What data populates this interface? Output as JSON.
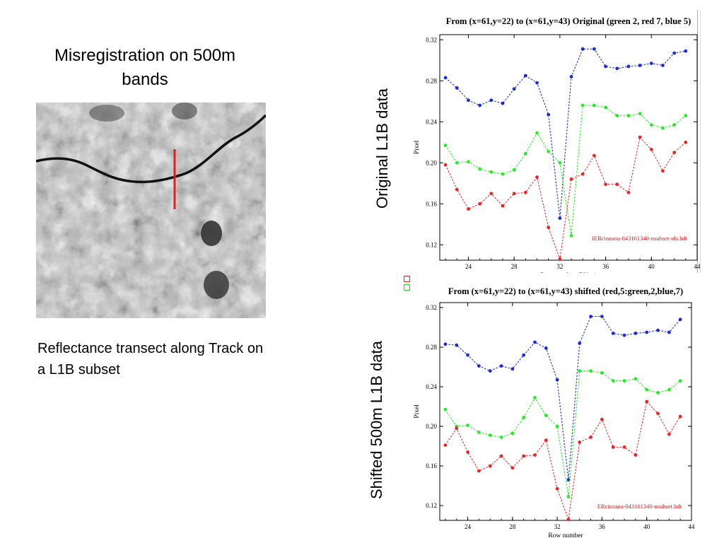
{
  "slide": {
    "title": "Misregistration on 500m bands",
    "caption": "Reflectance transect along Track on a L1B subset",
    "side_label_top": "Original L1B data",
    "side_label_bottom": "Shifted 500m L1B data"
  },
  "colors": {
    "red": "#e8262a",
    "green": "#22ee22",
    "blue": "#1a2ad8",
    "dark_red": "#d11a1a",
    "transect": "#e0201e"
  },
  "icons": [
    "legend-red-square",
    "legend-green-square"
  ],
  "chart_data": [
    {
      "type": "line",
      "title": "From (x=61,y=22) to (x=61,y=43) Original (green 2, red 7, blue 5)",
      "xlabel": "Row number (500m)",
      "ylabel": "Pixel",
      "annotation": "IERcinzana-043161340-nsubset-nls.hdt",
      "xlim": [
        21.5,
        44
      ],
      "ylim": [
        0.105,
        0.325
      ],
      "xticks": [
        24,
        28,
        32,
        36,
        40,
        44
      ],
      "yticks": [
        0.12,
        0.16,
        0.2,
        0.24,
        0.28,
        0.32
      ],
      "ytick_labels": [
        "0.12",
        "0.16",
        "0.20",
        "0.24",
        "0.28",
        "0.32"
      ],
      "x": [
        22,
        23,
        24,
        25,
        26,
        27,
        28,
        29,
        30,
        31,
        32,
        33,
        34,
        35,
        36,
        37,
        38,
        39,
        40,
        41,
        42,
        43
      ],
      "series": [
        {
          "color": "blue",
          "values": [
            0.283,
            0.273,
            0.261,
            0.256,
            0.261,
            0.258,
            0.272,
            0.285,
            0.278,
            0.247,
            0.146,
            0.284,
            0.311,
            0.311,
            0.294,
            0.292,
            0.294,
            0.295,
            0.297,
            0.295,
            0.307,
            0.309
          ]
        },
        {
          "color": "green",
          "values": [
            0.217,
            0.2,
            0.201,
            0.194,
            0.191,
            0.189,
            0.193,
            0.209,
            0.229,
            0.211,
            0.2,
            0.129,
            0.256,
            0.256,
            0.254,
            0.246,
            0.246,
            0.248,
            0.237,
            0.234,
            0.237,
            0.246
          ]
        },
        {
          "color": "red",
          "values": [
            0.198,
            0.174,
            0.155,
            0.16,
            0.17,
            0.158,
            0.17,
            0.171,
            0.186,
            0.137,
            0.106,
            0.184,
            0.189,
            0.207,
            0.179,
            0.179,
            0.171,
            0.225,
            0.213,
            0.192,
            0.21,
            0.22
          ]
        }
      ]
    },
    {
      "type": "line",
      "title": "From (x=61,y=22) to (x=61,y=43) shifted (red,5:green,2,blue,7)",
      "xlabel": "Row number",
      "ylabel": "Pixel",
      "annotation": "ERcinzana-043161340-nsubset.hdt",
      "xlim": [
        21.5,
        44
      ],
      "ylim": [
        0.105,
        0.325
      ],
      "xticks": [
        24,
        28,
        32,
        36,
        40,
        44
      ],
      "yticks": [
        0.12,
        0.16,
        0.2,
        0.24,
        0.28,
        0.32
      ],
      "ytick_labels": [
        "0.12",
        "0.16",
        "0.20",
        "0.24",
        "0.28",
        "0.32"
      ],
      "x": [
        22,
        23,
        24,
        25,
        26,
        27,
        28,
        29,
        30,
        31,
        32,
        33,
        34,
        35,
        36,
        37,
        38,
        39,
        40,
        41,
        42,
        43
      ],
      "series": [
        {
          "color": "blue",
          "values": [
            0.283,
            0.282,
            0.272,
            0.261,
            0.256,
            0.261,
            0.258,
            0.272,
            0.285,
            0.279,
            0.247,
            0.146,
            0.284,
            0.311,
            0.311,
            0.294,
            0.292,
            0.294,
            0.295,
            0.297,
            0.295,
            0.308
          ]
        },
        {
          "color": "green",
          "values": [
            0.217,
            0.2,
            0.201,
            0.194,
            0.191,
            0.189,
            0.193,
            0.209,
            0.229,
            0.211,
            0.2,
            0.129,
            0.256,
            0.256,
            0.254,
            0.246,
            0.246,
            0.248,
            0.237,
            0.234,
            0.237,
            0.246
          ]
        },
        {
          "color": "red",
          "values": [
            0.181,
            0.198,
            0.174,
            0.155,
            0.16,
            0.17,
            0.158,
            0.17,
            0.171,
            0.186,
            0.137,
            0.106,
            0.184,
            0.189,
            0.207,
            0.179,
            0.179,
            0.171,
            0.225,
            0.213,
            0.192,
            0.21
          ]
        }
      ]
    }
  ]
}
